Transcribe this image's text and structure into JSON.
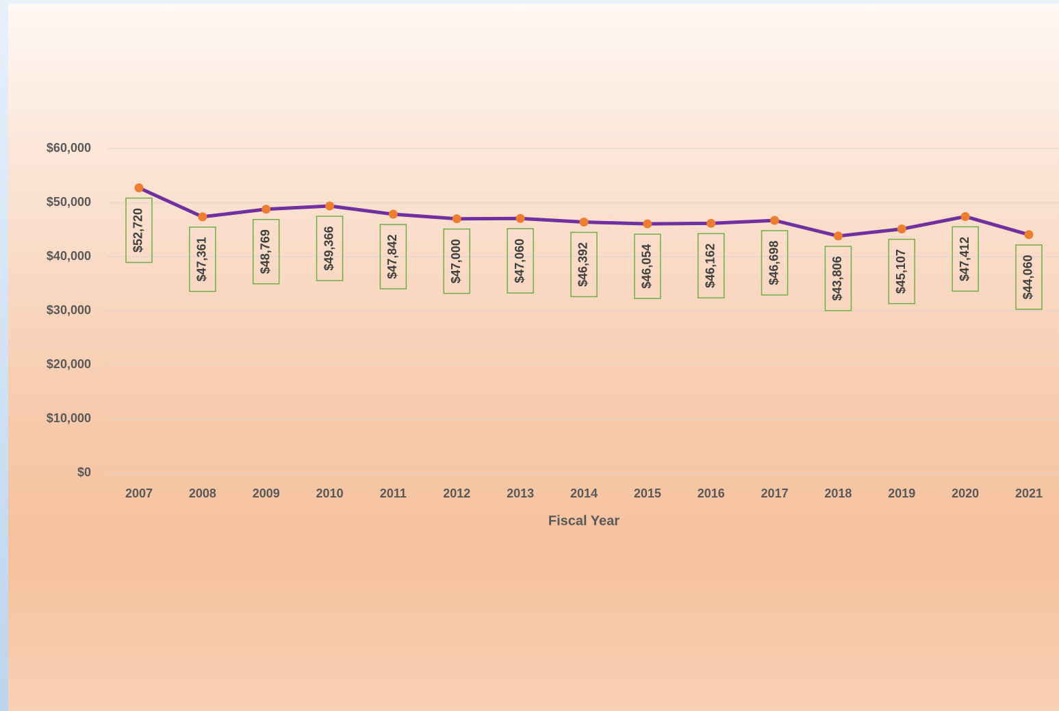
{
  "chart_data": {
    "type": "line",
    "x_label": "Fiscal Year",
    "categories": [
      "2007",
      "2008",
      "2009",
      "2010",
      "2011",
      "2012",
      "2013",
      "2014",
      "2015",
      "2016",
      "2017",
      "2018",
      "2019",
      "2020",
      "2021"
    ],
    "series": [
      {
        "name": "Value",
        "color": "#7030a0",
        "marker_color": "#ed7d31",
        "values": [
          52720,
          47361,
          48769,
          49366,
          47842,
          47000,
          47060,
          46392,
          46054,
          46162,
          46698,
          43806,
          45107,
          47412,
          44060
        ],
        "value_labels": [
          "$52,720",
          "$47,361",
          "$48,769",
          "$49,366",
          "$47,842",
          "$47,000",
          "$47,060",
          "$46,392",
          "$46,054",
          "$46,162",
          "$46,698",
          "$43,806",
          "$45,107",
          "$47,412",
          "$44,060"
        ]
      }
    ],
    "ylim": [
      0,
      60000
    ],
    "yticks": [
      {
        "value": 0,
        "label": "$0"
      },
      {
        "value": 10000,
        "label": "$10,000"
      },
      {
        "value": 20000,
        "label": "$20,000"
      },
      {
        "value": 30000,
        "label": "$30,000"
      },
      {
        "value": 40000,
        "label": "$40,000"
      },
      {
        "value": 50000,
        "label": "$50,000"
      },
      {
        "value": 60000,
        "label": "$60,000"
      }
    ],
    "grid": true,
    "label_box_color": "#70ad47"
  }
}
